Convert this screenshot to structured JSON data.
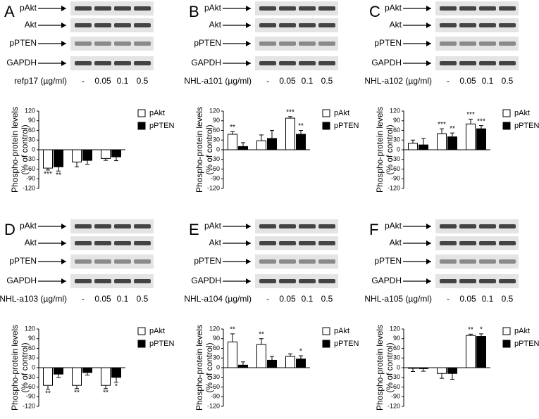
{
  "chart_data": [
    {
      "type": "bar",
      "panel_label": "A",
      "blot_labels": [
        "pAkt",
        "Akt",
        "pPTEN",
        "GAPDH"
      ],
      "treatment_label": "refp17 (µg/ml)",
      "doses": [
        "-",
        "0.05",
        "0.1",
        "0.5"
      ],
      "y_label": [
        "Phospho-protein levels",
        "(% of control)"
      ],
      "categories": [
        null,
        null,
        null
      ],
      "ylim": [
        -120,
        120
      ],
      "yticks": [
        -120,
        -90,
        -60,
        -30,
        0,
        30,
        60,
        90,
        120
      ],
      "series": [
        {
          "name": "pAkt",
          "color": "#ffffff",
          "values": [
            -57,
            -38,
            -27
          ],
          "errors": [
            6,
            15,
            6
          ],
          "annotations": [
            "***",
            null,
            null
          ]
        },
        {
          "name": "pPTEN",
          "color": "#000000",
          "values": [
            -53,
            -33,
            -22
          ],
          "errors": [
            13,
            12,
            12
          ],
          "annotations": [
            "**",
            null,
            null
          ]
        }
      ]
    },
    {
      "type": "bar",
      "panel_label": "B",
      "blot_labels": [
        "pAkt",
        "Akt",
        "pPTEN",
        "GAPDH"
      ],
      "treatment_label": "NHL-a101 (µg/ml)",
      "doses": [
        "-",
        "0.05",
        "0.1",
        "0.5"
      ],
      "y_label": [
        "Phospho-protein levels",
        "(% of control)"
      ],
      "categories": [
        null,
        null,
        null
      ],
      "ylim": [
        -120,
        120
      ],
      "yticks": [
        -120,
        -90,
        -60,
        -30,
        0,
        30,
        60,
        90,
        120
      ],
      "series": [
        {
          "name": "pAkt",
          "color": "#ffffff",
          "values": [
            48,
            28,
            98
          ],
          "errors": [
            8,
            18,
            5
          ],
          "annotations": [
            "**",
            null,
            "***"
          ]
        },
        {
          "name": "pPTEN",
          "color": "#000000",
          "values": [
            10,
            35,
            48
          ],
          "errors": [
            12,
            25,
            12
          ],
          "annotations": [
            null,
            null,
            "**"
          ]
        }
      ]
    },
    {
      "type": "bar",
      "panel_label": "C",
      "blot_labels": [
        "pAkt",
        "Akt",
        "pPTEN",
        "GAPDH"
      ],
      "treatment_label": "NHL-a102 (µg/ml)",
      "doses": [
        "-",
        "0.05",
        "0.1",
        "0.5"
      ],
      "y_label": [
        "Phospho-protein levels",
        "(% of control)"
      ],
      "categories": [
        null,
        null,
        null
      ],
      "ylim": [
        -120,
        120
      ],
      "yticks": [
        -120,
        -90,
        -60,
        -30,
        0,
        30,
        60,
        90,
        120
      ],
      "series": [
        {
          "name": "pAkt",
          "color": "#ffffff",
          "values": [
            20,
            50,
            80
          ],
          "errors": [
            10,
            15,
            15
          ],
          "annotations": [
            null,
            "***",
            "***"
          ]
        },
        {
          "name": "pPTEN",
          "color": "#000000",
          "values": [
            15,
            40,
            65
          ],
          "errors": [
            20,
            12,
            10
          ],
          "annotations": [
            null,
            "**",
            "***"
          ]
        }
      ]
    },
    {
      "type": "bar",
      "panel_label": "D",
      "blot_labels": [
        "pAkt",
        "Akt",
        "pPTEN",
        "GAPDH"
      ],
      "treatment_label": "NHL-a103 (µg/ml)",
      "doses": [
        "-",
        "0.05",
        "0.1",
        "0.5"
      ],
      "y_label": [
        "Phospho-protein levels",
        "(% of control)"
      ],
      "categories": [
        null,
        null,
        null
      ],
      "ylim": [
        -120,
        120
      ],
      "yticks": [
        -120,
        -90,
        -60,
        -30,
        0,
        30,
        60,
        90,
        120
      ],
      "series": [
        {
          "name": "pAkt",
          "color": "#ffffff",
          "values": [
            -55,
            -55,
            -55
          ],
          "errors": [
            12,
            10,
            10
          ],
          "annotations": [
            "**",
            "**",
            "**"
          ]
        },
        {
          "name": "pPTEN",
          "color": "#000000",
          "values": [
            -20,
            -15,
            -30
          ],
          "errors": [
            10,
            8,
            15
          ],
          "annotations": [
            null,
            null,
            "*"
          ]
        }
      ]
    },
    {
      "type": "bar",
      "panel_label": "E",
      "blot_labels": [
        "pAkt",
        "Akt",
        "pPTEN",
        "GAPDH"
      ],
      "treatment_label": "NHL-a104 (µg/ml)",
      "doses": [
        "-",
        "0.05",
        "0.1",
        "0.5"
      ],
      "y_label": [
        "Phospho-protein levels",
        "(% of control)"
      ],
      "categories": [
        null,
        null,
        null
      ],
      "ylim": [
        -120,
        120
      ],
      "yticks": [
        -120,
        -90,
        -60,
        -30,
        0,
        30,
        60,
        90,
        120
      ],
      "series": [
        {
          "name": "pAkt",
          "color": "#ffffff",
          "values": [
            80,
            72,
            35
          ],
          "errors": [
            25,
            18,
            8
          ],
          "annotations": [
            "**",
            "**",
            null
          ]
        },
        {
          "name": "pPTEN",
          "color": "#000000",
          "values": [
            8,
            23,
            27
          ],
          "errors": [
            10,
            12,
            10
          ],
          "annotations": [
            null,
            null,
            "*"
          ]
        }
      ]
    },
    {
      "type": "bar",
      "panel_label": "F",
      "blot_labels": [
        "pAkt",
        "Akt",
        "pPTEN",
        "GAPDH"
      ],
      "treatment_label": "NHL-a105 (µg/ml)",
      "doses": [
        "-",
        "0.05",
        "0.1",
        "0.5"
      ],
      "y_label": [
        "Phospho-protein levels",
        "(% of control)"
      ],
      "categories": [
        null,
        null,
        null
      ],
      "ylim": [
        -120,
        120
      ],
      "yticks": [
        -120,
        -90,
        -60,
        -30,
        0,
        30,
        60,
        90,
        120
      ],
      "series": [
        {
          "name": "pAkt",
          "color": "#ffffff",
          "values": [
            -2,
            -18,
            100
          ],
          "errors": [
            10,
            15,
            4
          ],
          "annotations": [
            null,
            null,
            "**"
          ]
        },
        {
          "name": "pPTEN",
          "color": "#000000",
          "values": [
            -3,
            -18,
            97
          ],
          "errors": [
            8,
            18,
            8
          ],
          "annotations": [
            null,
            null,
            "*"
          ]
        }
      ]
    }
  ]
}
